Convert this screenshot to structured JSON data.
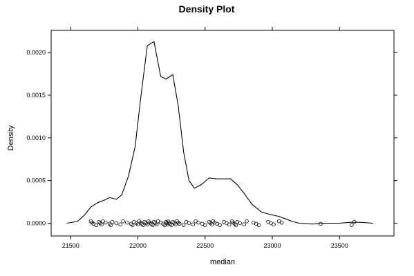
{
  "chart_data": {
    "type": "line",
    "title": "Density Plot",
    "xlabel": "median",
    "ylabel": "Density",
    "xlim": [
      21355,
      23905
    ],
    "ylim": [
      -0.00015,
      0.00226
    ],
    "x_ticks": [
      21500,
      22000,
      22500,
      23000,
      23500
    ],
    "x_tick_labels": [
      "21500",
      "22000",
      "22500",
      "23000",
      "23500"
    ],
    "y_ticks": [
      0.0,
      0.0005,
      0.001,
      0.0015,
      0.002
    ],
    "y_tick_labels": [
      "0.0000",
      "0.0005",
      "0.0010",
      "0.0015",
      "0.0020"
    ],
    "grid": false,
    "legend": "none",
    "colors": {
      "line": "#000000",
      "points": "#000000",
      "frame": "#000000"
    },
    "series": [
      {
        "x": [
          21470,
          21550,
          21600,
          21650,
          21700,
          21750,
          21790,
          21840,
          21880,
          21930,
          21980,
          22020,
          22070,
          22120,
          22170,
          22210,
          22260,
          22300,
          22340,
          22380,
          22420,
          22470,
          22530,
          22590,
          22650,
          22690,
          22740,
          22790,
          22850,
          22920,
          22990,
          23050,
          23100,
          23150,
          23200,
          23300,
          23400,
          23500,
          23580,
          23650,
          23750
        ],
        "y": [
          0.0,
          2e-05,
          9e-05,
          0.00019,
          0.00024,
          0.00027,
          0.0003,
          0.00028,
          0.00033,
          0.00055,
          0.0009,
          0.00145,
          0.00208,
          0.00213,
          0.00172,
          0.00169,
          0.00174,
          0.00138,
          0.00084,
          0.0005,
          0.00041,
          0.00045,
          0.00053,
          0.00052,
          0.00052,
          0.00052,
          0.00045,
          0.00035,
          0.00022,
          0.00013,
          0.0001,
          8e-05,
          5e-05,
          2e-05,
          0.0,
          -1e-05,
          0.0,
          0.0,
          1e-05,
          1e-05,
          0.0
        ]
      }
    ],
    "rug_points": [
      21650,
      21660,
      21670,
      21690,
      21710,
      21720,
      21730,
      21740,
      21760,
      21790,
      21800,
      21810,
      21840,
      21870,
      21890,
      21920,
      21950,
      21960,
      21970,
      21990,
      22000,
      22010,
      22020,
      22030,
      22040,
      22050,
      22060,
      22070,
      22080,
      22090,
      22100,
      22110,
      22120,
      22130,
      22140,
      22150,
      22170,
      22190,
      22200,
      22210,
      22215,
      22220,
      22225,
      22230,
      22240,
      22250,
      22260,
      22270,
      22280,
      22290,
      22300,
      22310,
      22340,
      22360,
      22380,
      22410,
      22430,
      22450,
      22480,
      22500,
      22530,
      22540,
      22550,
      22560,
      22570,
      22590,
      22610,
      22640,
      22660,
      22680,
      22700,
      22710,
      22720,
      22730,
      22740,
      22760,
      22790,
      22810,
      22860,
      22880,
      22900,
      22970,
      22990,
      23010,
      23050,
      23070,
      23360,
      23590,
      23610
    ]
  }
}
